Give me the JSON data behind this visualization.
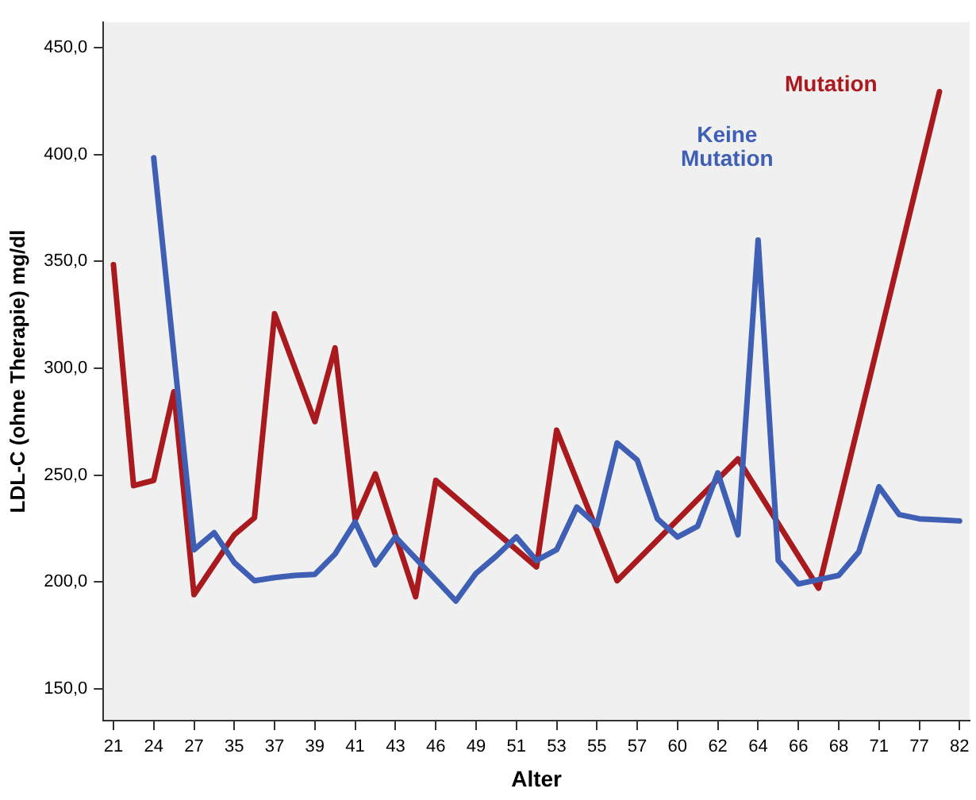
{
  "chart_data": {
    "type": "line",
    "xlabel": "Alter",
    "ylabel": "LDL-C (ohne Therapie) mg/dl",
    "categories": [
      "21",
      null,
      "24",
      null,
      "27",
      null,
      "35",
      null,
      "37",
      null,
      "39",
      null,
      "41",
      null,
      "43",
      null,
      "46",
      null,
      "49",
      null,
      "51",
      null,
      "53",
      null,
      "55",
      null,
      "57",
      null,
      "60",
      null,
      "62",
      null,
      "64",
      null,
      "66",
      null,
      "68",
      null,
      "71",
      null,
      "77",
      null,
      "82"
    ],
    "series": [
      {
        "name": "Keine Mutation",
        "color": "#3f5fb5",
        "values": [
          null,
          null,
          398.5,
          null,
          215,
          223,
          209,
          200.5,
          202,
          203,
          203.5,
          213,
          228,
          208,
          221,
          211,
          201,
          191,
          204,
          212,
          221,
          210,
          215,
          235,
          226.5,
          265,
          257,
          229.5,
          221,
          226,
          251,
          222,
          360,
          210,
          199,
          201,
          203,
          214,
          244.5,
          231.5,
          229.5,
          229,
          228.5
        ]
      },
      {
        "name": "Mutation",
        "color": "#a91a1f",
        "values": [
          348.5,
          245,
          247.5,
          289,
          194,
          null,
          222,
          230,
          325.5,
          null,
          275,
          309.5,
          229,
          250.5,
          null,
          193,
          247.5,
          null,
          null,
          null,
          null,
          207,
          271,
          null,
          null,
          200.5,
          null,
          null,
          null,
          null,
          null,
          257.5,
          null,
          null,
          null,
          197,
          null,
          null,
          null,
          null,
          null,
          429.5,
          null
        ]
      }
    ],
    "ylim": [
      135,
      462
    ],
    "yticks": [
      {
        "value": 150,
        "label": "150,0"
      },
      {
        "value": 200,
        "label": "200,0"
      },
      {
        "value": 250,
        "label": "250,0"
      },
      {
        "value": 300,
        "label": "300,0"
      },
      {
        "value": 350,
        "label": "350,0"
      },
      {
        "value": 400,
        "label": "400,0"
      },
      {
        "value": 450,
        "label": "450,0"
      }
    ],
    "grid": false,
    "legend": false,
    "marker": "none",
    "line_style": "solid"
  }
}
